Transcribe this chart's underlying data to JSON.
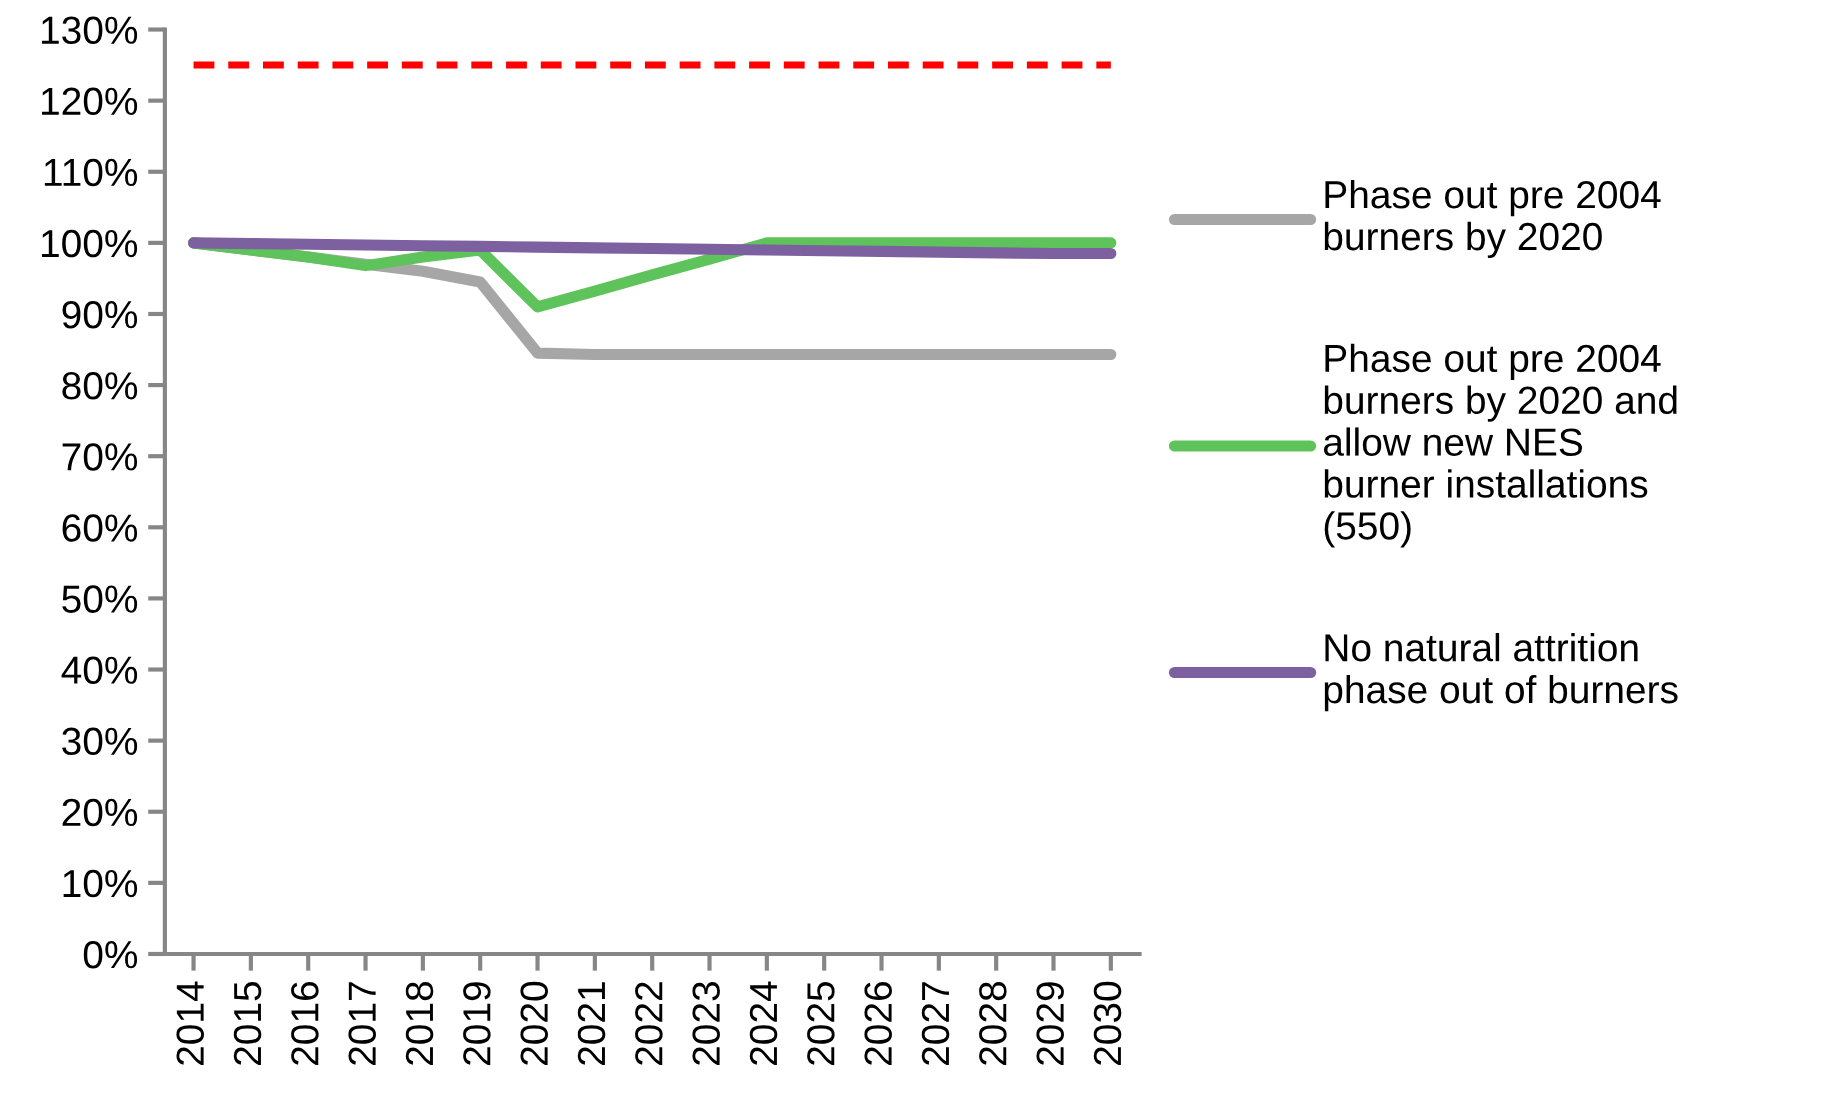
{
  "chart_data": {
    "type": "line",
    "categories": [
      "2014",
      "2015",
      "2016",
      "2017",
      "2018",
      "2019",
      "2020",
      "2021",
      "2022",
      "2023",
      "2024",
      "2025",
      "2026",
      "2027",
      "2028",
      "2029",
      "2030"
    ],
    "series": [
      {
        "name": "Phase out pre 2004\nburners by 2020",
        "color": "#a6a6a6",
        "values": [
          100,
          99,
          98,
          97,
          96,
          94.5,
          84.5,
          84.3,
          84.3,
          84.3,
          84.3,
          84.3,
          84.3,
          84.3,
          84.3,
          84.3,
          84.3
        ]
      },
      {
        "name": "Phase out pre 2004\nburners by 2020 and\nallow new NES\nburner installations\n(550)",
        "color": "#5ec35a",
        "values": [
          100,
          99,
          98,
          96.8,
          98,
          99,
          91,
          93.2,
          95.5,
          97.7,
          100,
          100,
          100,
          100,
          100,
          100,
          100
        ]
      },
      {
        "name": "No natural attrition\nphase out of burners",
        "color": "#7d60a0",
        "values": [
          100,
          99.9,
          99.8,
          99.7,
          99.6,
          99.5,
          99.4,
          99.3,
          99.2,
          99.1,
          99,
          98.9,
          98.8,
          98.7,
          98.6,
          98.5,
          98.5
        ]
      }
    ],
    "ref_lines": [
      {
        "axis": "y",
        "value": 125,
        "color": "#ff0000",
        "line_style": "dashed"
      }
    ],
    "ylim": [
      0,
      130
    ],
    "yticks": [
      {
        "value": 0,
        "label": "0%"
      },
      {
        "value": 10,
        "label": "10%"
      },
      {
        "value": 20,
        "label": "20%"
      },
      {
        "value": 30,
        "label": "30%"
      },
      {
        "value": 40,
        "label": "40%"
      },
      {
        "value": 50,
        "label": "50%"
      },
      {
        "value": 60,
        "label": "60%"
      },
      {
        "value": 70,
        "label": "70%"
      },
      {
        "value": 80,
        "label": "80%"
      },
      {
        "value": 90,
        "label": "90%"
      },
      {
        "value": 100,
        "label": "100%"
      },
      {
        "value": 110,
        "label": "110%"
      },
      {
        "value": 120,
        "label": "120%"
      },
      {
        "value": 130,
        "label": "130%"
      }
    ],
    "grid": false,
    "legend": "right",
    "marker": "none",
    "line_style": "solid"
  }
}
